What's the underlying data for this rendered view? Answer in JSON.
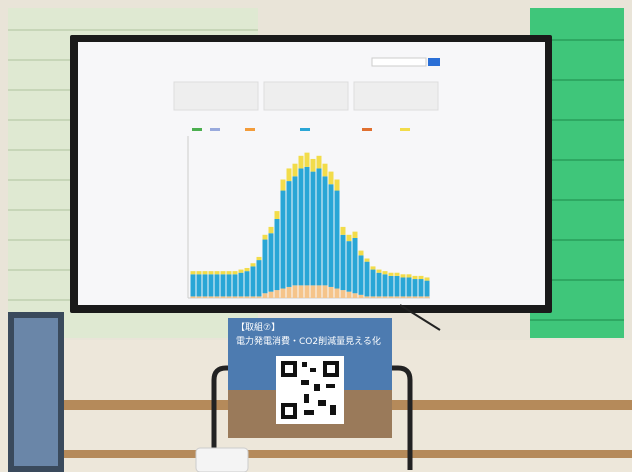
{
  "sign": {
    "tag": "【取組⑦】",
    "title": "電力発電消費・CO2削減量見える化"
  },
  "screen": {
    "chart": {
      "type": "bar",
      "ylim": [
        0,
        100
      ],
      "series": [
        {
          "color": "#f5c48a",
          "values": [
            1,
            1,
            1,
            1,
            1,
            1,
            1,
            1,
            1,
            1,
            1,
            1,
            3,
            4,
            5,
            6,
            7,
            8,
            8,
            8,
            8,
            8,
            8,
            7,
            6,
            5,
            4,
            3,
            2,
            1,
            1,
            1,
            1,
            1,
            1,
            1,
            1,
            1,
            1,
            1
          ]
        },
        {
          "color": "#2aa6d6",
          "values": [
            14,
            14,
            14,
            14,
            14,
            14,
            14,
            14,
            15,
            16,
            19,
            23,
            34,
            37,
            45,
            62,
            67,
            69,
            74,
            75,
            72,
            74,
            69,
            65,
            62,
            35,
            32,
            35,
            25,
            22,
            17,
            15,
            14,
            13,
            13,
            12,
            12,
            11,
            11,
            10
          ]
        },
        {
          "color": "#f2dc4a",
          "values": [
            2,
            2,
            2,
            2,
            2,
            2,
            2,
            2,
            2,
            2,
            2,
            2,
            3,
            4,
            5,
            7,
            8,
            8,
            8,
            9,
            8,
            8,
            8,
            8,
            7,
            5,
            4,
            4,
            3,
            2,
            2,
            2,
            2,
            2,
            2,
            2,
            2,
            2,
            2,
            2
          ]
        }
      ]
    }
  }
}
